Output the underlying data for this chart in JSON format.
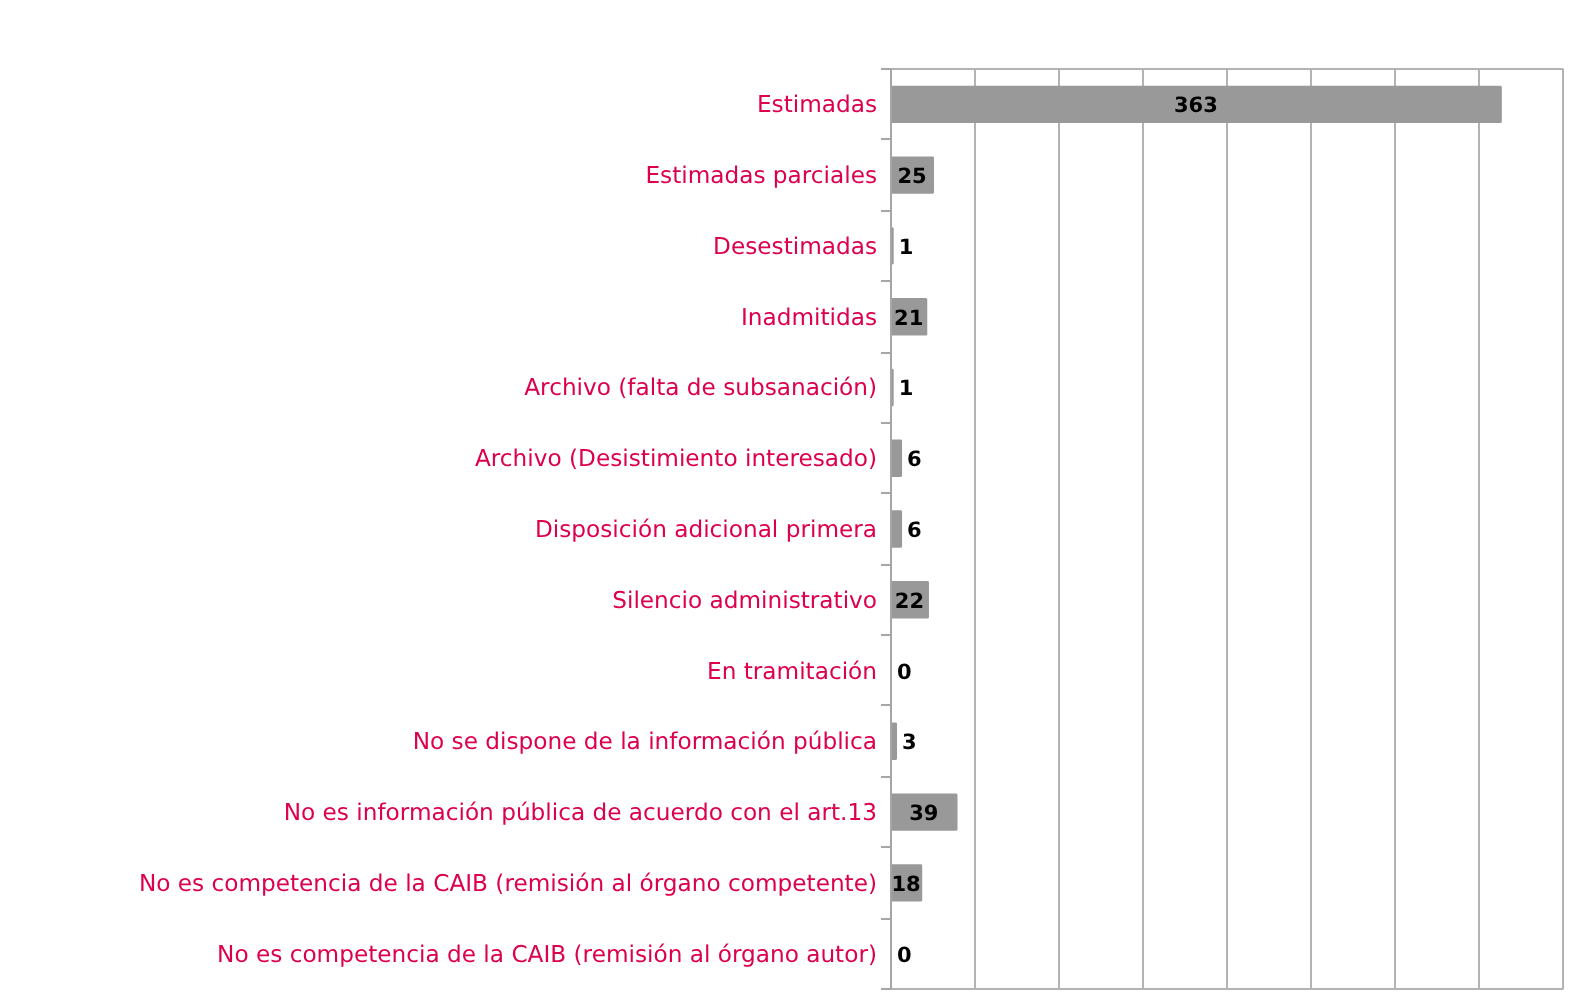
{
  "chart_data": {
    "type": "bar",
    "orientation": "horizontal",
    "categories": [
      "Estimadas",
      "Estimadas parciales",
      "Desestimadas",
      "Inadmitidas",
      "Archivo (falta de subsanación)",
      "Archivo (Desistimiento interesado)",
      "Disposición adicional primera",
      "Silencio administrativo",
      "En tramitación",
      "No se dispone de la información pública",
      "No es información pública de acuerdo con el art.13",
      "No es competencia de la CAIB (remisión al órgano competente)",
      "No es competencia de la CAIB (remisión al órgano autor)"
    ],
    "values": [
      363,
      25,
      1,
      21,
      1,
      6,
      6,
      22,
      0,
      3,
      39,
      18,
      0
    ],
    "color": "#999999",
    "data_labels": true,
    "xlim": [
      0,
      400
    ],
    "xticks": [
      {
        "value": 0,
        "label": null
      },
      {
        "value": 50,
        "label": null
      },
      {
        "value": 100,
        "label": null
      },
      {
        "value": 150,
        "label": null
      },
      {
        "value": 200,
        "label": null
      },
      {
        "value": 250,
        "label": null
      },
      {
        "value": 300,
        "label": null
      },
      {
        "value": 350,
        "label": null
      },
      {
        "value": 400,
        "label": null
      }
    ],
    "grid": "x"
  }
}
